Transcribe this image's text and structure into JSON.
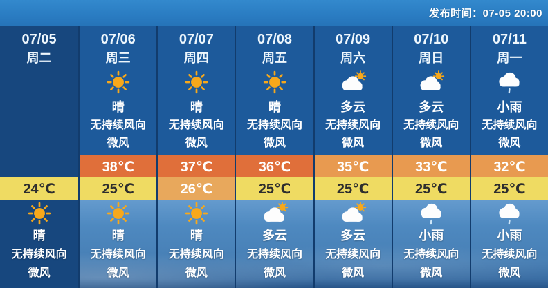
{
  "header": {
    "release_label": "发布时间：07-05 20:00"
  },
  "colors": {
    "top_band": "#2a7cc2",
    "today_column": "#17477e",
    "day_column": "#1d5a9b",
    "hot": "#e06f3a",
    "warm": "#e89a50",
    "low_mild": "#efdb62",
    "low_warm": "#e8a85c",
    "low_text": "#2e2e2e",
    "separator": "#123c6d"
  },
  "columns": [
    {
      "date": "07/05",
      "weekday": "周二",
      "is_today": true,
      "day": null,
      "high_temp": "",
      "high_temp_level": "today",
      "low_temp": "24℃",
      "low_temp_level": "low-mild",
      "night": {
        "icon": "sun-icon",
        "condition": "晴",
        "wind_direction": "无持续风向",
        "wind_force": "微风"
      }
    },
    {
      "date": "07/06",
      "weekday": "周三",
      "day": {
        "icon": "sun-icon",
        "condition": "晴",
        "wind_direction": "无持续风向",
        "wind_force": "微风"
      },
      "high_temp": "38℃",
      "high_temp_level": "hot",
      "low_temp": "25℃",
      "low_temp_level": "low-mild",
      "night": {
        "icon": "sun-icon",
        "condition": "晴",
        "wind_direction": "无持续风向",
        "wind_force": "微风"
      }
    },
    {
      "date": "07/07",
      "weekday": "周四",
      "day": {
        "icon": "sun-icon",
        "condition": "晴",
        "wind_direction": "无持续风向",
        "wind_force": "微风"
      },
      "high_temp": "37℃",
      "high_temp_level": "hot",
      "low_temp": "26℃",
      "low_temp_level": "low-warm",
      "night": {
        "icon": "sun-icon",
        "condition": "晴",
        "wind_direction": "无持续风向",
        "wind_force": "微风"
      }
    },
    {
      "date": "07/08",
      "weekday": "周五",
      "day": {
        "icon": "sun-icon",
        "condition": "晴",
        "wind_direction": "无持续风向",
        "wind_force": "微风"
      },
      "high_temp": "36℃",
      "high_temp_level": "hot",
      "low_temp": "25℃",
      "low_temp_level": "low-mild",
      "night": {
        "icon": "sun-cloud-icon",
        "condition": "多云",
        "wind_direction": "无持续风向",
        "wind_force": "微风"
      }
    },
    {
      "date": "07/09",
      "weekday": "周六",
      "day": {
        "icon": "sun-cloud-icon",
        "condition": "多云",
        "wind_direction": "无持续风向",
        "wind_force": "微风"
      },
      "high_temp": "35℃",
      "high_temp_level": "warm",
      "low_temp": "25℃",
      "low_temp_level": "low-mild",
      "night": {
        "icon": "sun-cloud-icon",
        "condition": "多云",
        "wind_direction": "无持续风向",
        "wind_force": "微风"
      }
    },
    {
      "date": "07/10",
      "weekday": "周日",
      "day": {
        "icon": "sun-cloud-icon",
        "condition": "多云",
        "wind_direction": "无持续风向",
        "wind_force": "微风"
      },
      "high_temp": "33℃",
      "high_temp_level": "warm",
      "low_temp": "25℃",
      "low_temp_level": "low-mild",
      "night": {
        "icon": "rain-cloud-icon",
        "condition": "小雨",
        "wind_direction": "无持续风向",
        "wind_force": "微风"
      }
    },
    {
      "date": "07/11",
      "weekday": "周一",
      "day": {
        "icon": "rain-cloud-icon",
        "condition": "小雨",
        "wind_direction": "无持续风向",
        "wind_force": "微风"
      },
      "high_temp": "32℃",
      "high_temp_level": "warm",
      "low_temp": "25℃",
      "low_temp_level": "low-mild",
      "night": {
        "icon": "rain-cloud-icon",
        "condition": "小雨",
        "wind_direction": "无持续风向",
        "wind_force": "微风"
      }
    }
  ]
}
